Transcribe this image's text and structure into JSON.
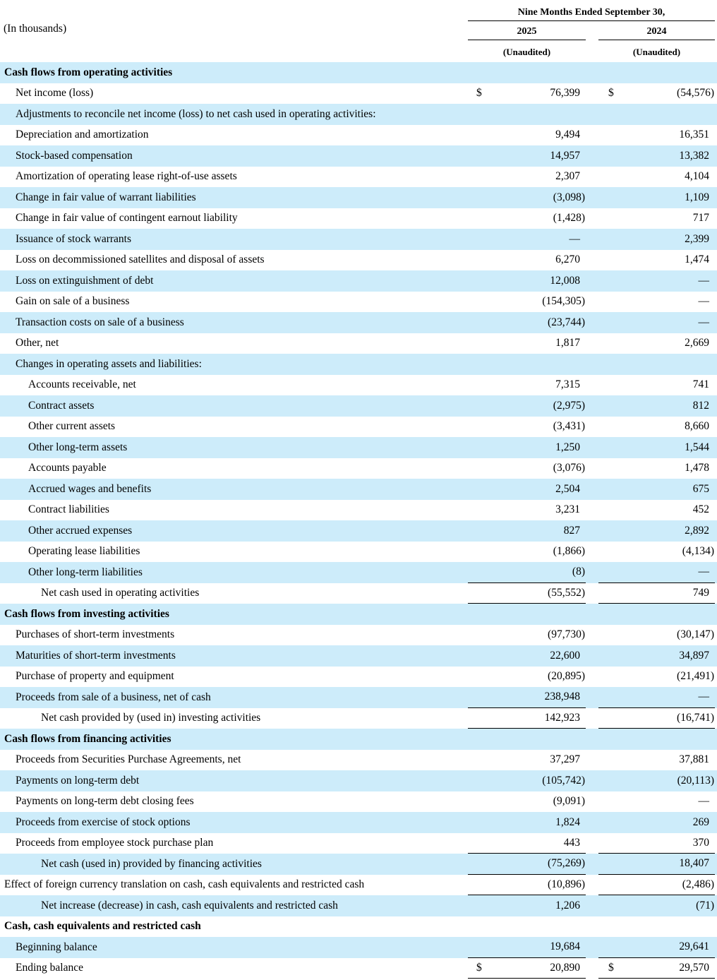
{
  "header": {
    "units_note": "(In thousands)",
    "period_title": "Nine Months Ended September 30,",
    "columns": [
      {
        "year": "2025",
        "subtitle": "(Unaudited)"
      },
      {
        "year": "2024",
        "subtitle": "(Unaudited)"
      }
    ]
  },
  "table": {
    "currency_symbol": "$",
    "colors": {
      "row_highlight": "#cdecfa",
      "rule": "#000000"
    },
    "rows": [
      {
        "type": "section",
        "indent": 0,
        "label": "Cash flows from operating activities"
      },
      {
        "type": "data",
        "indent": 1,
        "label": "Net income (loss)",
        "v2025": "76,399",
        "v2024": "(54,576)",
        "dollar": true
      },
      {
        "type": "label",
        "indent": 1,
        "label": "Adjustments to reconcile net income (loss) to net cash used in operating activities:"
      },
      {
        "type": "data",
        "indent": 1,
        "label": "Depreciation and amortization",
        "v2025": "9,494",
        "v2024": "16,351"
      },
      {
        "type": "data",
        "indent": 1,
        "label": "Stock-based compensation",
        "v2025": "14,957",
        "v2024": "13,382"
      },
      {
        "type": "data",
        "indent": 1,
        "label": "Amortization of operating lease right-of-use assets",
        "v2025": "2,307",
        "v2024": "4,104"
      },
      {
        "type": "data",
        "indent": 1,
        "label": "Change in fair value of warrant liabilities",
        "v2025": "(3,098)",
        "v2024": "1,109"
      },
      {
        "type": "data",
        "indent": 1,
        "label": "Change in fair value of contingent earnout liability",
        "v2025": "(1,428)",
        "v2024": "717"
      },
      {
        "type": "data",
        "indent": 1,
        "label": "Issuance of stock warrants",
        "v2025": "—",
        "v2024": "2,399"
      },
      {
        "type": "data",
        "indent": 1,
        "label": "Loss on decommissioned satellites and disposal of assets",
        "v2025": "6,270",
        "v2024": "1,474"
      },
      {
        "type": "data",
        "indent": 1,
        "label": "Loss on extinguishment of debt",
        "v2025": "12,008",
        "v2024": "—"
      },
      {
        "type": "data",
        "indent": 1,
        "label": "Gain on sale of a business",
        "v2025": "(154,305)",
        "v2024": "—"
      },
      {
        "type": "data",
        "indent": 1,
        "label": "Transaction costs on sale of a business",
        "v2025": "(23,744)",
        "v2024": "—"
      },
      {
        "type": "data",
        "indent": 1,
        "label": "Other, net",
        "v2025": "1,817",
        "v2024": "2,669"
      },
      {
        "type": "label",
        "indent": 1,
        "label": "Changes in operating assets and liabilities:"
      },
      {
        "type": "data",
        "indent": 2,
        "label": "Accounts receivable, net",
        "v2025": "7,315",
        "v2024": "741"
      },
      {
        "type": "data",
        "indent": 2,
        "label": "Contract assets",
        "v2025": "(2,975)",
        "v2024": "812"
      },
      {
        "type": "data",
        "indent": 2,
        "label": "Other current assets",
        "v2025": "(3,431)",
        "v2024": "8,660"
      },
      {
        "type": "data",
        "indent": 2,
        "label": "Other long-term assets",
        "v2025": "1,250",
        "v2024": "1,544"
      },
      {
        "type": "data",
        "indent": 2,
        "label": "Accounts payable",
        "v2025": "(3,076)",
        "v2024": "1,478"
      },
      {
        "type": "data",
        "indent": 2,
        "label": "Accrued wages and benefits",
        "v2025": "2,504",
        "v2024": "675"
      },
      {
        "type": "data",
        "indent": 2,
        "label": "Contract liabilities",
        "v2025": "3,231",
        "v2024": "452"
      },
      {
        "type": "data",
        "indent": 2,
        "label": "Other accrued expenses",
        "v2025": "827",
        "v2024": "2,892"
      },
      {
        "type": "data",
        "indent": 2,
        "label": "Operating lease liabilities",
        "v2025": "(1,866)",
        "v2024": "(4,134)"
      },
      {
        "type": "data",
        "indent": 2,
        "label": "Other long-term liabilities",
        "v2025": "(8)",
        "v2024": "—",
        "line_below": true
      },
      {
        "type": "data",
        "indent": 3,
        "label": "Net cash used in operating activities",
        "v2025": "(55,552)",
        "v2024": "749",
        "line_below": true
      },
      {
        "type": "section",
        "indent": 0,
        "label": "Cash flows from investing activities"
      },
      {
        "type": "data",
        "indent": 1,
        "label": "Purchases of short-term investments",
        "v2025": "(97,730)",
        "v2024": "(30,147)"
      },
      {
        "type": "data",
        "indent": 1,
        "label": "Maturities of short-term investments",
        "v2025": "22,600",
        "v2024": "34,897"
      },
      {
        "type": "data",
        "indent": 1,
        "label": "Purchase of property and equipment",
        "v2025": "(20,895)",
        "v2024": "(21,491)"
      },
      {
        "type": "data",
        "indent": 1,
        "label": "Proceeds from sale of a business, net of cash",
        "v2025": "238,948",
        "v2024": "—",
        "line_below": true
      },
      {
        "type": "data",
        "indent": 3,
        "label": "Net cash provided by (used in) investing activities",
        "v2025": "142,923",
        "v2024": "(16,741)",
        "line_below": true
      },
      {
        "type": "section",
        "indent": 0,
        "label": "Cash flows from financing activities"
      },
      {
        "type": "data",
        "indent": 1,
        "label": "Proceeds from Securities Purchase Agreements, net",
        "v2025": "37,297",
        "v2024": "37,881"
      },
      {
        "type": "data",
        "indent": 1,
        "label": "Payments on long-term debt",
        "v2025": "(105,742)",
        "v2024": "(20,113)"
      },
      {
        "type": "data",
        "indent": 1,
        "label": "Payments on long-term debt closing fees",
        "v2025": "(9,091)",
        "v2024": "—"
      },
      {
        "type": "data",
        "indent": 1,
        "label": "Proceeds from exercise of stock options",
        "v2025": "1,824",
        "v2024": "269"
      },
      {
        "type": "data",
        "indent": 1,
        "label": "Proceeds from employee stock purchase plan",
        "v2025": "443",
        "v2024": "370",
        "line_below": true
      },
      {
        "type": "data",
        "indent": 3,
        "label": "Net cash (used in) provided by financing activities",
        "v2025": "(75,269)",
        "v2024": "18,407",
        "line_below": true
      },
      {
        "type": "data",
        "indent": 0,
        "label": "Effect of foreign currency translation on cash, cash equivalents and restricted cash",
        "v2025": "(10,896)",
        "v2024": "(2,486)",
        "line_below": true
      },
      {
        "type": "data",
        "indent": 3,
        "label": "Net increase (decrease) in cash, cash equivalents and restricted cash",
        "v2025": "1,206",
        "v2024": "(71)"
      },
      {
        "type": "section",
        "indent": 0,
        "label": "Cash, cash equivalents and restricted cash"
      },
      {
        "type": "data",
        "indent": 1,
        "label": "Beginning balance",
        "v2025": "19,684",
        "v2024": "29,641",
        "line_below": true
      },
      {
        "type": "data",
        "indent": 1,
        "label": "Ending balance",
        "v2025": "20,890",
        "v2024": "29,570",
        "dollar": true,
        "line_below": true
      }
    ]
  }
}
